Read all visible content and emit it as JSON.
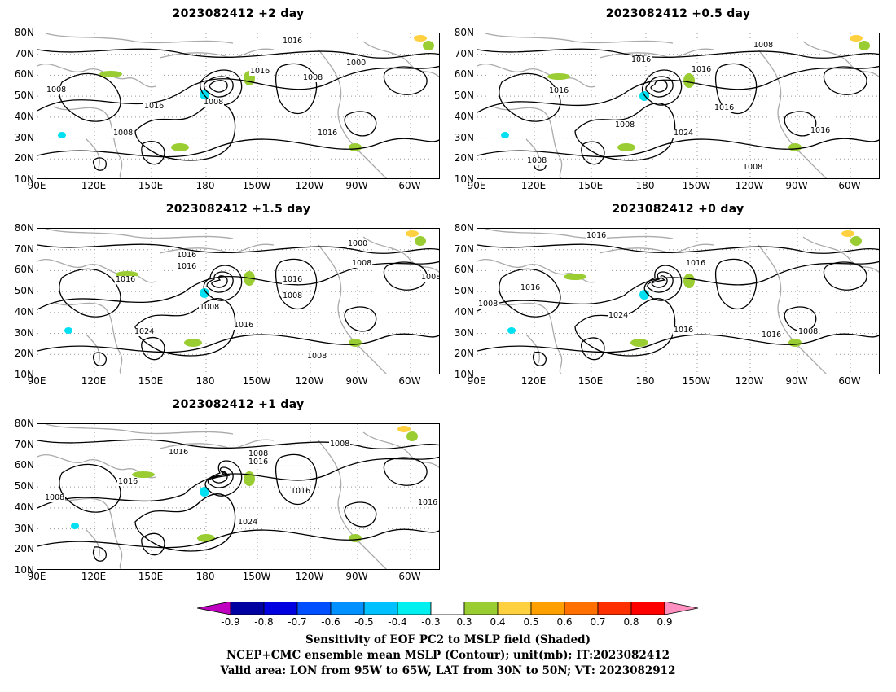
{
  "panels": [
    {
      "id": "p1",
      "title": "2023082412 +2 day",
      "labels": [
        "1008",
        "1016",
        "1016",
        "1000",
        "1008",
        "1016",
        "1016",
        "1008",
        "1008"
      ]
    },
    {
      "id": "p2",
      "title": "2023082412 +0.5 day",
      "labels": [
        "1008",
        "1016",
        "1016",
        "1016",
        "1008",
        "1024",
        "1016",
        "1016",
        "1008",
        "1008"
      ]
    },
    {
      "id": "p3",
      "title": "2023082412 +1.5 day",
      "labels": [
        "1000",
        "1008",
        "1016",
        "1016",
        "1008",
        "1016",
        "1016",
        "1008",
        "1024",
        "1016",
        "1008",
        "1008"
      ]
    },
    {
      "id": "p4",
      "title": "2023082412 +0 day",
      "labels": [
        "1016",
        "1016",
        "1016",
        "1008",
        "1024",
        "1016",
        "1016",
        "1008"
      ]
    },
    {
      "id": "p5",
      "title": "2023082412 +1 day",
      "labels": [
        "1016",
        "1008",
        "1016",
        "1008",
        "1016",
        "1016",
        "1024",
        "1008",
        "1016"
      ]
    }
  ],
  "lat_labels": [
    "80N",
    "70N",
    "60N",
    "50N",
    "40N",
    "30N",
    "20N",
    "10N"
  ],
  "lon_labels": [
    "90E",
    "120E",
    "150E",
    "180",
    "150W",
    "120W",
    "90W",
    "60W"
  ],
  "colorbar": {
    "labels": [
      "-0.9",
      "-0.8",
      "-0.7",
      "-0.6",
      "-0.5",
      "-0.4",
      "-0.3",
      "0.3",
      "0.4",
      "0.5",
      "0.6",
      "0.7",
      "0.8",
      "0.9"
    ],
    "colors": [
      "#c000c0",
      "#0000a0",
      "#0000e0",
      "#0050ff",
      "#0090ff",
      "#00c0ff",
      "#00f0f0",
      "#ffffff",
      "#9acd32",
      "#ffd040",
      "#ffa000",
      "#ff7000",
      "#ff3000",
      "#ff0000",
      "#ff90c0"
    ]
  },
  "caption": {
    "line1": "Sensitivity of EOF PC2 to MSLP field (Shaded)",
    "line2": "NCEP+CMC ensemble mean MSLP (Contour); unit(mb); IT:2023082412",
    "line3": "Valid area: LON from 95W to 65W, LAT from 30N to 50N; VT: 2023082912"
  }
}
